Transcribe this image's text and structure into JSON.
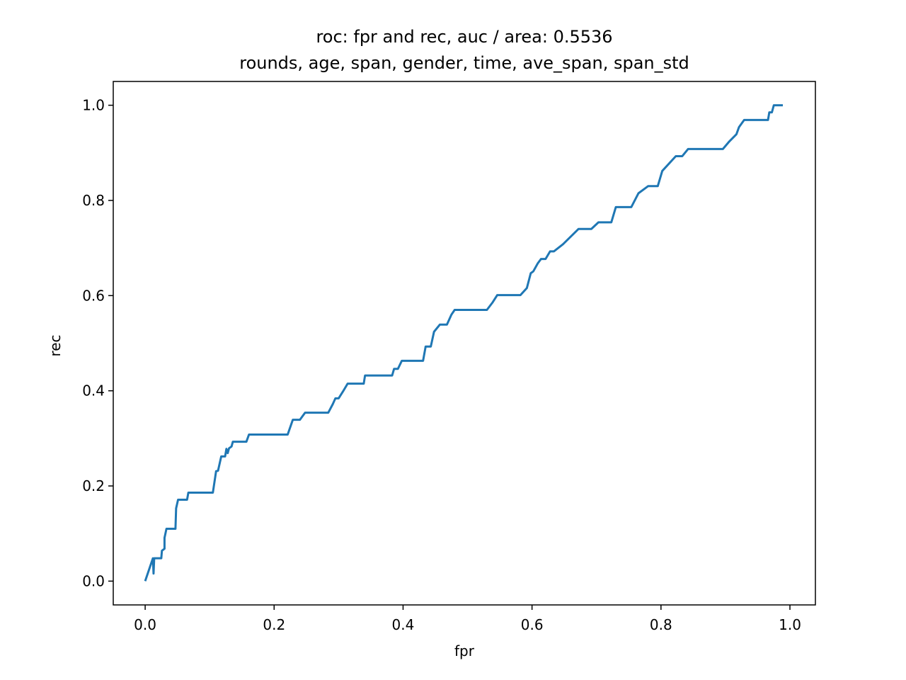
{
  "chart_data": {
    "type": "line",
    "title": "roc: fpr and rec, auc / area: 0.5536",
    "subtitle": "rounds, age, span, gender, time, ave_span, span_std",
    "x_label": "fpr",
    "y_label": "rec",
    "x": [
      0,
      0.012,
      0.013,
      0.014,
      0.025,
      0.026,
      0.03,
      0.03,
      0.033,
      0.047,
      0.048,
      0.051,
      0.065,
      0.067,
      0.105,
      0.11,
      0.113,
      0.118,
      0.124,
      0.126,
      0.128,
      0.13,
      0.134,
      0.136,
      0.157,
      0.161,
      0.221,
      0.229,
      0.24,
      0.248,
      0.284,
      0.291,
      0.295,
      0.3,
      0.307,
      0.314,
      0.339,
      0.341,
      0.383,
      0.386,
      0.392,
      0.398,
      0.431,
      0.435,
      0.443,
      0.448,
      0.457,
      0.468,
      0.475,
      0.48,
      0.53,
      0.539,
      0.546,
      0.582,
      0.592,
      0.598,
      0.602,
      0.609,
      0.614,
      0.621,
      0.628,
      0.634,
      0.648,
      0.672,
      0.692,
      0.703,
      0.723,
      0.73,
      0.754,
      0.765,
      0.78,
      0.795,
      0.802,
      0.823,
      0.833,
      0.842,
      0.896,
      0.906,
      0.917,
      0.921,
      0.929,
      0.966,
      0.968,
      0.972,
      0.975,
      0.989
    ],
    "series": [
      {
        "name": "roc",
        "color": "#1f77b4",
        "values": [
          0,
          0.048,
          0.016,
          0.048,
          0.048,
          0.064,
          0.068,
          0.091,
          0.11,
          0.11,
          0.153,
          0.171,
          0.171,
          0.186,
          0.186,
          0.231,
          0.232,
          0.262,
          0.262,
          0.278,
          0.269,
          0.279,
          0.283,
          0.293,
          0.293,
          0.308,
          0.308,
          0.339,
          0.339,
          0.354,
          0.354,
          0.372,
          0.384,
          0.384,
          0.399,
          0.415,
          0.415,
          0.432,
          0.432,
          0.446,
          0.446,
          0.463,
          0.463,
          0.493,
          0.493,
          0.524,
          0.539,
          0.539,
          0.56,
          0.57,
          0.57,
          0.586,
          0.601,
          0.601,
          0.616,
          0.647,
          0.651,
          0.668,
          0.677,
          0.677,
          0.693,
          0.693,
          0.708,
          0.74,
          0.74,
          0.754,
          0.754,
          0.786,
          0.786,
          0.815,
          0.83,
          0.83,
          0.862,
          0.893,
          0.893,
          0.908,
          0.908,
          0.924,
          0.939,
          0.954,
          0.969,
          0.969,
          0.985,
          0.985,
          1.0,
          1.0
        ]
      }
    ],
    "xlim": [
      -0.0495,
      1.0395
    ],
    "ylim": [
      -0.05,
      1.05
    ],
    "xticks": [
      {
        "value": 0,
        "label": "0.0"
      },
      {
        "value": 0.2,
        "label": "0.2"
      },
      {
        "value": 0.4,
        "label": "0.4"
      },
      {
        "value": 0.6,
        "label": "0.6"
      },
      {
        "value": 0.8,
        "label": "0.8"
      },
      {
        "value": 1,
        "label": "1.0"
      }
    ],
    "yticks": [
      {
        "value": 0,
        "label": "0.0"
      },
      {
        "value": 0.2,
        "label": "0.2"
      },
      {
        "value": 0.4,
        "label": "0.4"
      },
      {
        "value": 0.6,
        "label": "0.6"
      },
      {
        "value": 0.8,
        "label": "0.8"
      },
      {
        "value": 1,
        "label": "1.0"
      }
    ],
    "grid": false
  }
}
